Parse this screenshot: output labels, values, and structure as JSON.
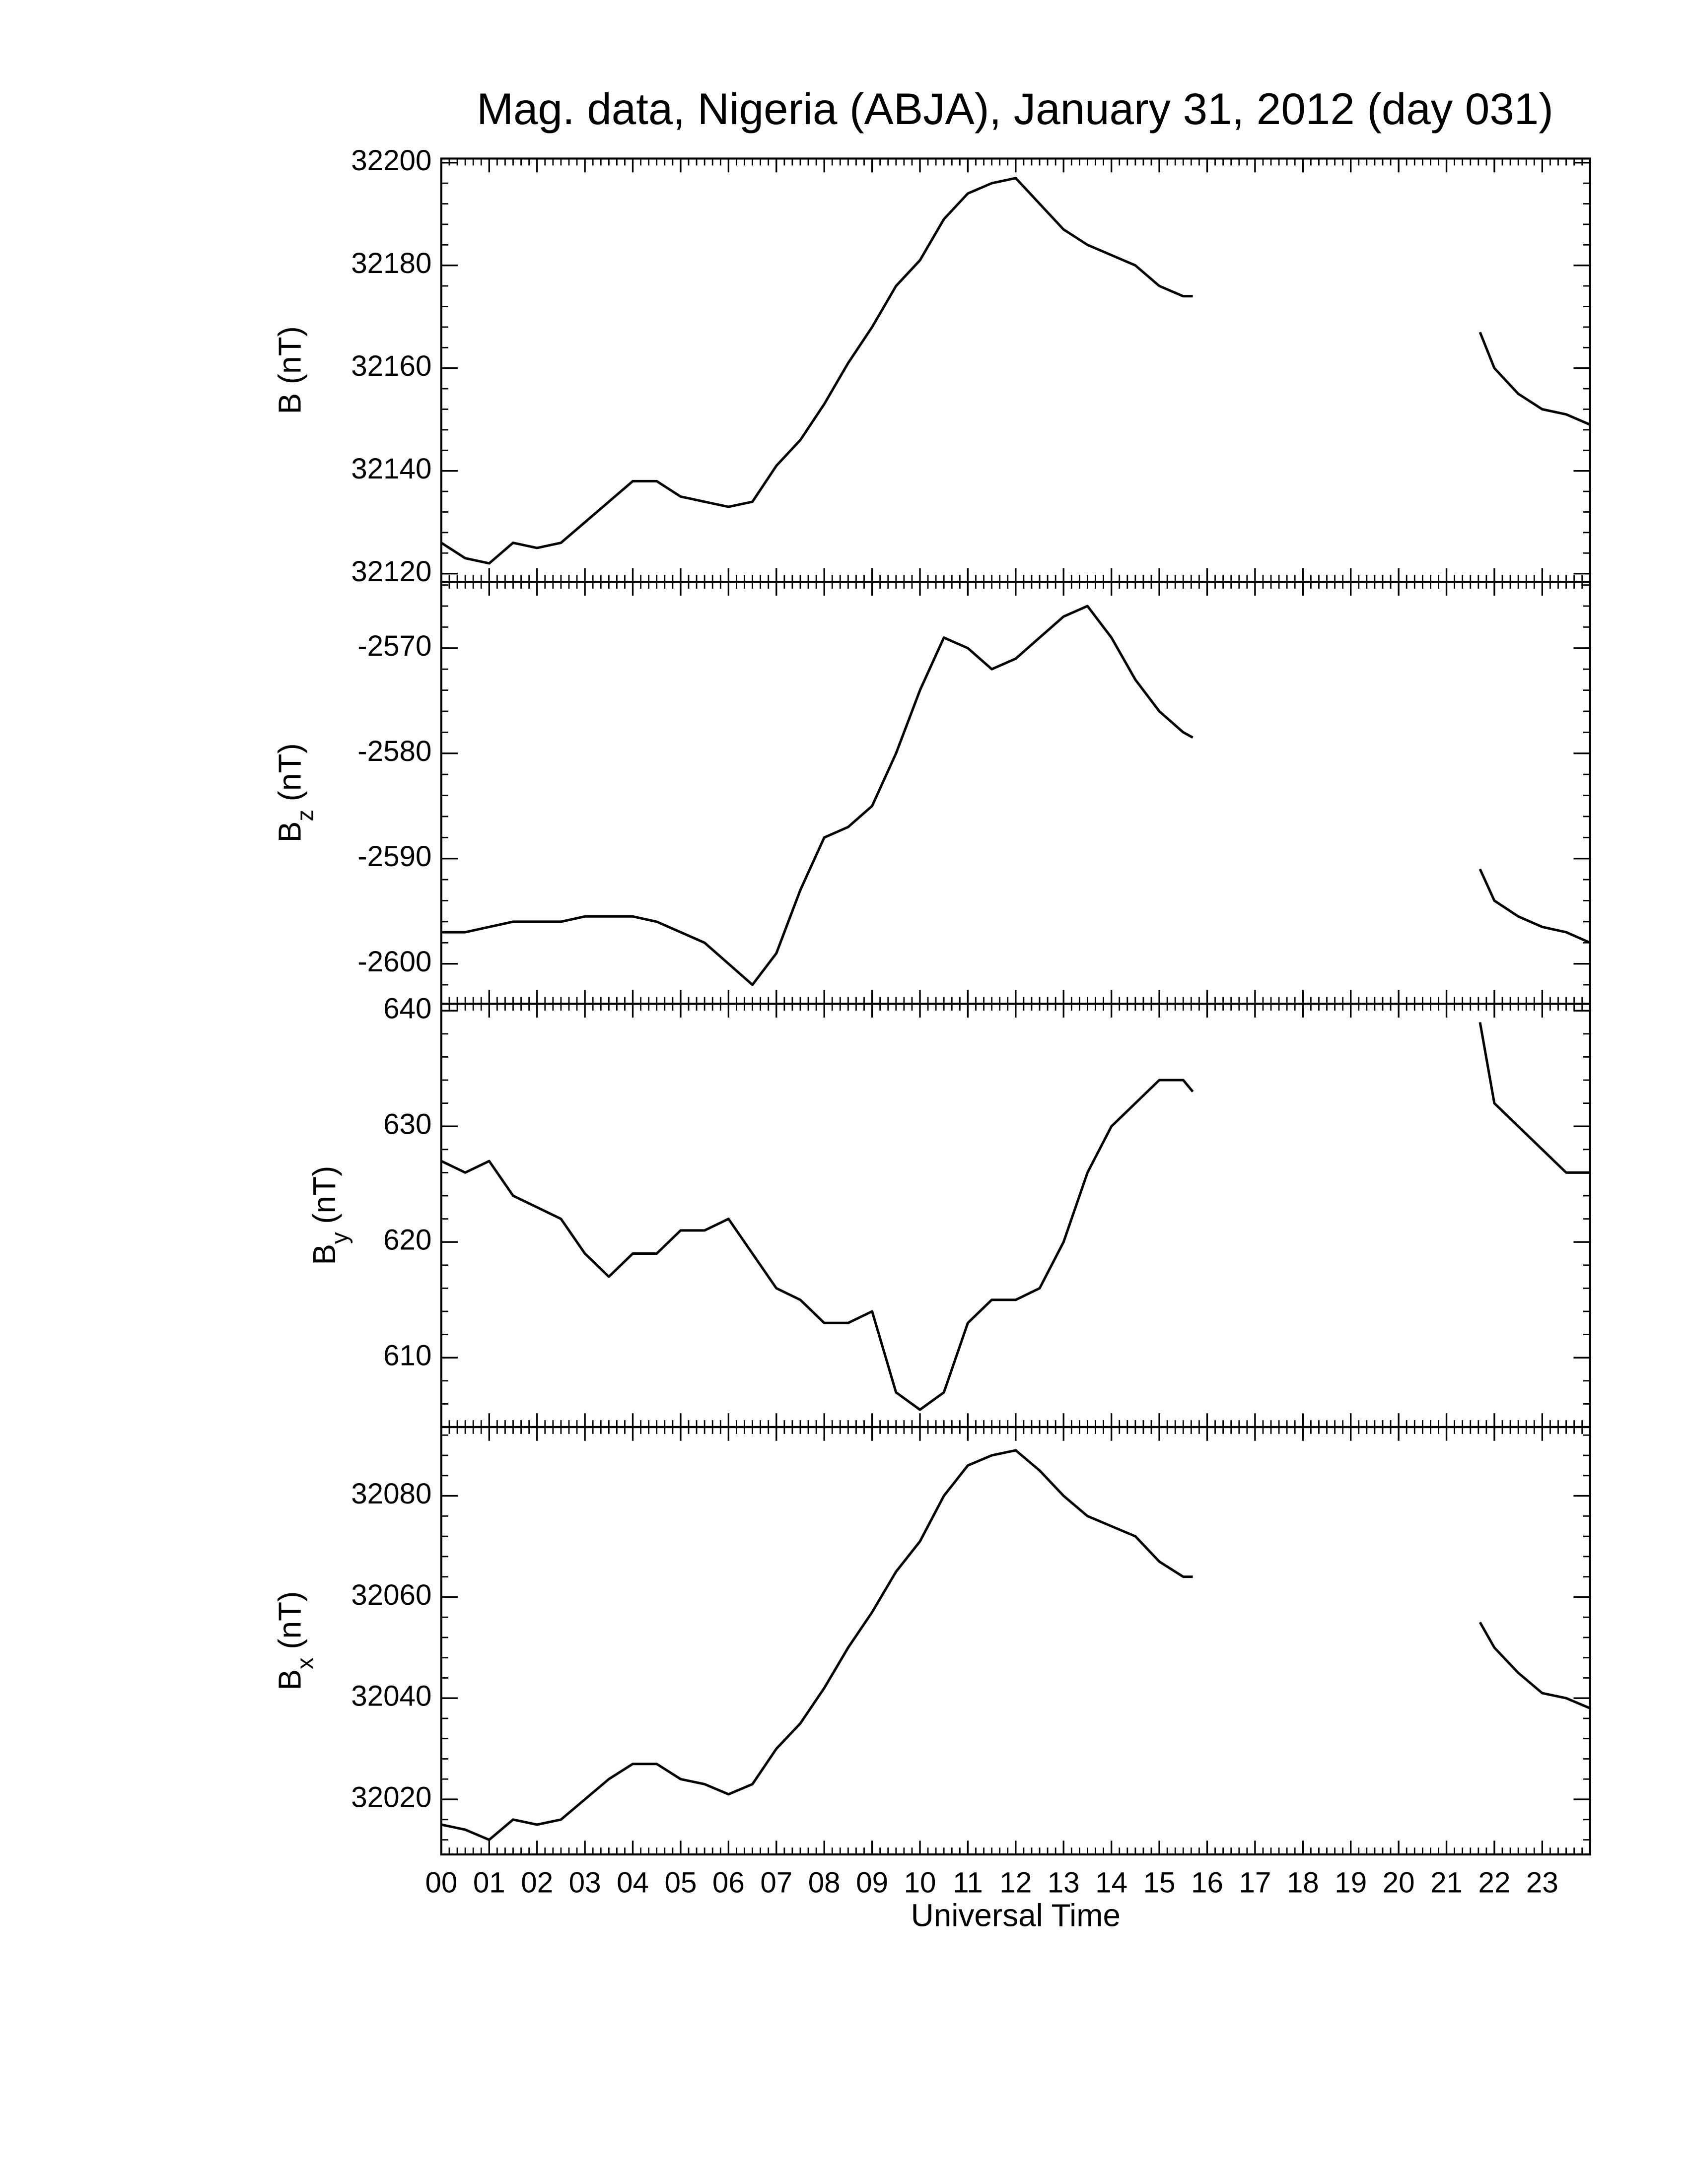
{
  "chart_data": [
    {
      "type": "line",
      "title": "Mag. data, Nigeria (ABJA), January 31, 2012 (day 031)",
      "ylabel": "B (nT)",
      "color": "#000000",
      "x": [
        0,
        0.5,
        1,
        1.5,
        2,
        2.5,
        3,
        3.5,
        4,
        4.5,
        5,
        5.5,
        6,
        6.5,
        7,
        7.5,
        8,
        8.5,
        9,
        9.5,
        10,
        10.5,
        11,
        11.5,
        12,
        12.5,
        13,
        13.5,
        14,
        14.5,
        15,
        15.5,
        15.7,
        18,
        21.7,
        22,
        22.5,
        23,
        23.5,
        24
      ],
      "values": [
        32126,
        32123,
        32122,
        32126,
        32125,
        32126,
        32130,
        32134,
        32138,
        32138,
        32135,
        32134,
        32133,
        32134,
        32141,
        32146,
        32153,
        32161,
        32168,
        32176,
        32181,
        32189,
        32194,
        32196,
        32197,
        32192,
        32187,
        32184,
        32182,
        32180,
        32176,
        32174,
        32174,
        null,
        32167,
        32160,
        32155,
        32152,
        32151,
        32149
      ],
      "xlim": [
        0,
        24
      ],
      "ylim": [
        32118.4,
        32200.8
      ],
      "yticks": [
        32120,
        32140,
        32160,
        32180,
        32200
      ]
    },
    {
      "type": "line",
      "ylabel": "B",
      "ylabel_sub": "z",
      "ylabel_unit": "(nT)",
      "color": "#000000",
      "x": [
        0,
        0.5,
        1,
        1.5,
        2,
        2.5,
        3,
        3.5,
        4,
        4.5,
        5,
        5.5,
        6,
        6.5,
        7,
        7.5,
        8,
        8.5,
        9,
        9.5,
        10,
        10.5,
        11,
        11.5,
        12,
        12.5,
        13,
        13.5,
        14,
        14.5,
        15,
        15.5,
        15.7,
        18,
        21.7,
        22,
        22.5,
        23,
        23.5,
        24
      ],
      "values": [
        -2597,
        -2597,
        -2596.5,
        -2596,
        -2596,
        -2596,
        -2595.5,
        -2595.5,
        -2595.5,
        -2596,
        -2597,
        -2598,
        -2600,
        -2602,
        -2599,
        -2593,
        -2588,
        -2587,
        -2585,
        -2580,
        -2574,
        -2569,
        -2570,
        -2572,
        -2571,
        -2569,
        -2567,
        -2566,
        -2569,
        -2573,
        -2576,
        -2578,
        -2578.5,
        null,
        -2591,
        -2594,
        -2595.5,
        -2596.5,
        -2597,
        -2598
      ],
      "xlim": [
        0,
        24
      ],
      "ylim": [
        -2603.8,
        -2563.7
      ],
      "yticks": [
        -2600,
        -2590,
        -2580,
        -2570
      ]
    },
    {
      "type": "line",
      "ylabel": "B",
      "ylabel_sub": "y",
      "ylabel_unit": "(nT)",
      "color": "#000000",
      "x": [
        0,
        0.5,
        1,
        1.5,
        2,
        2.5,
        3,
        3.5,
        4,
        4.5,
        5,
        5.5,
        6,
        6.5,
        7,
        7.5,
        8,
        8.5,
        9,
        9.5,
        10,
        10.5,
        11,
        11.5,
        12,
        12.5,
        13,
        13.5,
        14,
        14.5,
        15,
        15.5,
        15.7,
        18,
        21.7,
        22,
        22.5,
        23,
        23.5,
        24
      ],
      "values": [
        627,
        626,
        627,
        624,
        623,
        622,
        619,
        617,
        619,
        619,
        621,
        621,
        622,
        619,
        616,
        615,
        613,
        613,
        614,
        607,
        605.5,
        607,
        613,
        615,
        615,
        616,
        620,
        626,
        630,
        632,
        634,
        634,
        633,
        null,
        639,
        632,
        630,
        628,
        626,
        626
      ],
      "xlim": [
        0,
        24
      ],
      "ylim": [
        604,
        640.6
      ],
      "yticks": [
        610,
        620,
        630,
        640
      ]
    },
    {
      "type": "line",
      "ylabel": "B",
      "ylabel_sub": "x",
      "ylabel_unit": "(nT)",
      "xlabel": "Universal Time",
      "color": "#000000",
      "x": [
        0,
        0.5,
        1,
        1.5,
        2,
        2.5,
        3,
        3.5,
        4,
        4.5,
        5,
        5.5,
        6,
        6.5,
        7,
        7.5,
        8,
        8.5,
        9,
        9.5,
        10,
        10.5,
        11,
        11.5,
        12,
        12.5,
        13,
        13.5,
        14,
        14.5,
        15,
        15.5,
        15.7,
        18,
        21.7,
        22,
        22.5,
        23,
        23.5,
        24
      ],
      "values": [
        32015,
        32014,
        32012,
        32016,
        32015,
        32016,
        32020,
        32024,
        32027,
        32027,
        32024,
        32023,
        32021,
        32023,
        32030,
        32035,
        32042,
        32050,
        32057,
        32065,
        32071,
        32080,
        32086,
        32088,
        32089,
        32085,
        32080,
        32076,
        32074,
        32072,
        32067,
        32064,
        32064,
        null,
        32055,
        32050,
        32045,
        32041,
        32040,
        32038
      ],
      "xlim": [
        0,
        24
      ],
      "ylim": [
        32009.1,
        32093.6
      ],
      "yticks": [
        32020,
        32040,
        32060,
        32080
      ],
      "xticks": [
        {
          "value": 0,
          "label": "00"
        },
        {
          "value": 1,
          "label": "01"
        },
        {
          "value": 2,
          "label": "02"
        },
        {
          "value": 3,
          "label": "03"
        },
        {
          "value": 4,
          "label": "04"
        },
        {
          "value": 5,
          "label": "05"
        },
        {
          "value": 6,
          "label": "06"
        },
        {
          "value": 7,
          "label": "07"
        },
        {
          "value": 8,
          "label": "08"
        },
        {
          "value": 9,
          "label": "09"
        },
        {
          "value": 10,
          "label": "10"
        },
        {
          "value": 11,
          "label": "11"
        },
        {
          "value": 12,
          "label": "12"
        },
        {
          "value": 13,
          "label": "13"
        },
        {
          "value": 14,
          "label": "14"
        },
        {
          "value": 15,
          "label": "15"
        },
        {
          "value": 16,
          "label": "16"
        },
        {
          "value": 17,
          "label": "17"
        },
        {
          "value": 18,
          "label": "18"
        },
        {
          "value": 19,
          "label": "19"
        },
        {
          "value": 20,
          "label": "20"
        },
        {
          "value": 21,
          "label": "21"
        },
        {
          "value": 22,
          "label": "22"
        },
        {
          "value": 23,
          "label": "23"
        }
      ]
    }
  ]
}
